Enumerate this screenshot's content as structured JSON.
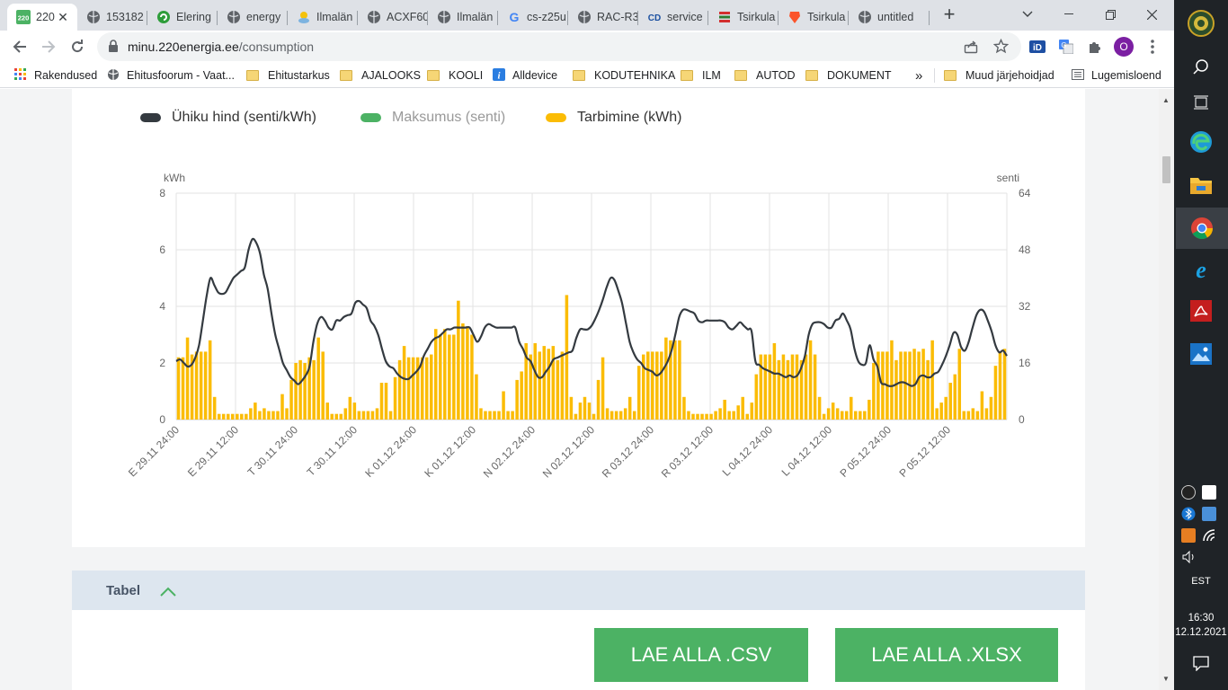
{
  "browser": {
    "tabs": [
      {
        "label": "220",
        "icon": "220-logo-icon",
        "active": true
      },
      {
        "label": "153182",
        "icon": "globe-icon"
      },
      {
        "label": "Elering",
        "icon": "elering-icon"
      },
      {
        "label": "energy",
        "icon": "globe-icon"
      },
      {
        "label": "Ilmalän",
        "icon": "weather-icon"
      },
      {
        "label": "ACXF60",
        "icon": "globe-icon"
      },
      {
        "label": "Ilmalän",
        "icon": "globe-icon"
      },
      {
        "label": "cs-z25u",
        "icon": "google-icon"
      },
      {
        "label": "RAC-R3",
        "icon": "globe-icon"
      },
      {
        "label": "service",
        "icon": "cd-icon"
      },
      {
        "label": "Tsirkula",
        "icon": "stack-icon"
      },
      {
        "label": "Tsirkula",
        "icon": "brave-icon"
      },
      {
        "label": "untitled",
        "icon": "globe-icon"
      }
    ],
    "url_host": "minu.220energia.ee",
    "url_path": "/consumption",
    "profile_initial": "O",
    "bookmarks": [
      {
        "label": "Rakendused",
        "icon": "apps-grid-icon"
      },
      {
        "label": "Ehitusfoorum - Vaat...",
        "icon": "globe-icon"
      },
      {
        "label": "Ehitustarkus",
        "icon": "folder-icon"
      },
      {
        "label": "AJALOOKS",
        "icon": "folder-icon"
      },
      {
        "label": "KOOLI",
        "icon": "folder-icon"
      },
      {
        "label": "Alldevice",
        "icon": "info-icon"
      },
      {
        "label": "KODUTEHNIKA",
        "icon": "folder-icon"
      },
      {
        "label": "ILM",
        "icon": "folder-icon"
      },
      {
        "label": "AUTOD",
        "icon": "folder-icon"
      },
      {
        "label": "DOKUMENT",
        "icon": "folder-icon"
      }
    ],
    "more_bookmarks": "»",
    "other_bookmarks": "Muud järjehoidjad",
    "reading_list": "Lugemisloend"
  },
  "legend": [
    {
      "label": "Ühiku hind (senti/kWh)",
      "color": "#343a40",
      "enabled": true
    },
    {
      "label": "Maksumus (senti)",
      "color": "#4cb264",
      "enabled": false
    },
    {
      "label": "Tarbimine (kWh)",
      "color": "#fbbc05",
      "enabled": true
    }
  ],
  "chart_data": {
    "type": "bar",
    "y_left_label": "kWh",
    "y_right_label": "senti",
    "y_left_ticks": [
      "0",
      "2",
      "4",
      "6",
      "8"
    ],
    "y_right_ticks": [
      "0",
      "16",
      "32",
      "48",
      "64"
    ],
    "ylim_left": [
      0,
      8
    ],
    "ylim_right": [
      0,
      64
    ],
    "x_tick_labels": [
      "E 29.11 24:00",
      "E 29.11 12:00",
      "T 30.11 24:00",
      "T 30.11 12:00",
      "K 01.12 24:00",
      "K 01.12 12:00",
      "N 02.12 24:00",
      "N 02.12 12:00",
      "R 03.12 24:00",
      "R 03.12 12:00",
      "L 04.12 24:00",
      "L 04.12 12:00",
      "P 05.12 24:00",
      "P 05.12 12:00"
    ],
    "grid": true,
    "series": [
      {
        "name": "Tarbimine (kWh)",
        "axis": "left",
        "type": "bar",
        "color": "#fbbc05",
        "values": [
          2.2,
          2.2,
          2.9,
          2.3,
          2.4,
          2.4,
          2.4,
          2.8,
          0.8,
          0.2,
          0.2,
          0.2,
          0.2,
          0.2,
          0.2,
          0.2,
          0.4,
          0.6,
          0.3,
          0.4,
          0.3,
          0.3,
          0.3,
          0.9,
          0.4,
          1.4,
          2.0,
          2.1,
          2.0,
          2.2,
          2.1,
          2.9,
          2.4,
          0.6,
          0.2,
          0.2,
          0.2,
          0.4,
          0.8,
          0.6,
          0.3,
          0.3,
          0.3,
          0.3,
          0.4,
          1.3,
          1.3,
          0.3,
          1.5,
          2.1,
          2.6,
          2.2,
          2.2,
          2.2,
          2.2,
          2.2,
          2.3,
          3.2,
          3.0,
          3.2,
          3.0,
          3.0,
          4.2,
          3.4,
          3.3,
          3.0,
          1.6,
          0.4,
          0.3,
          0.3,
          0.3,
          0.3,
          1.0,
          0.3,
          0.3,
          1.4,
          1.7,
          2.7,
          2.3,
          2.7,
          2.4,
          2.6,
          2.5,
          2.6,
          2.1,
          2.4,
          4.4,
          0.8,
          0.2,
          0.6,
          0.8,
          0.6,
          0.2,
          1.4,
          2.2,
          0.4,
          0.3,
          0.3,
          0.3,
          0.4,
          0.8,
          0.3,
          1.9,
          2.3,
          2.4,
          2.4,
          2.4,
          2.4,
          2.9,
          2.8,
          2.8,
          2.8,
          0.8,
          0.3,
          0.2,
          0.2,
          0.2,
          0.2,
          0.2,
          0.3,
          0.4,
          0.7,
          0.3,
          0.3,
          0.5,
          0.8,
          0.2,
          0.6,
          1.6,
          2.3,
          2.3,
          2.3,
          2.7,
          2.1,
          2.3,
          2.1,
          2.3,
          2.3,
          2.1,
          2.3,
          2.8,
          2.3,
          0.8,
          0.2,
          0.4,
          0.6,
          0.4,
          0.3,
          0.3,
          0.8,
          0.3,
          0.3,
          0.3,
          0.7,
          2.0,
          2.4,
          2.4,
          2.4,
          2.8,
          2.1,
          2.4,
          2.4,
          2.4,
          2.5,
          2.4,
          2.5,
          2.1,
          2.8,
          0.4,
          0.6,
          0.8,
          1.3,
          1.6,
          2.5,
          0.3,
          0.3,
          0.4,
          0.3,
          1.0,
          0.4,
          0.8,
          1.9,
          2.4,
          2.5
        ]
      },
      {
        "name": "Ühiku hind (senti/kWh)",
        "axis": "right",
        "type": "line",
        "color": "#343a40",
        "values": [
          16.5,
          17.0,
          16.0,
          15.0,
          15.5,
          17.5,
          21.0,
          28.0,
          35.0,
          40.0,
          38.0,
          36.0,
          35.5,
          36.0,
          38.0,
          40.0,
          41.0,
          42.0,
          43.0,
          48.0,
          51.0,
          50.0,
          47.0,
          41.0,
          37.0,
          30.0,
          24.0,
          20.0,
          16.0,
          14.0,
          12.0,
          11.0,
          10.0,
          11.0,
          12.5,
          15.0,
          22.0,
          27.0,
          29.0,
          28.0,
          26.0,
          25.5,
          28.0,
          28.0,
          29.0,
          29.5,
          30.0,
          33.0,
          33.5,
          32.5,
          31.5,
          28.0,
          26.5,
          24.0,
          20.0,
          16.5,
          15.0,
          14.5,
          13.0,
          12.0,
          11.5,
          11.5,
          12.5,
          13.5,
          15.0,
          18.0,
          20.0,
          22.0,
          23.0,
          23.5,
          24.5,
          25.5,
          25.5,
          26.0,
          26.0,
          26.0,
          26.0,
          26.0,
          24.0,
          22.0,
          23.5,
          26.0,
          27.0,
          26.5,
          26.0,
          26.0,
          26.0,
          26.0,
          26.0,
          26.0,
          22.0,
          20.0,
          17.5,
          16.5,
          14.0,
          12.0,
          12.0,
          13.5,
          15.0,
          17.0,
          17.5,
          18.0,
          18.5,
          19.0,
          19.5,
          23.0,
          25.5,
          25.5,
          25.5,
          26.5,
          28.5,
          31.0,
          34.0,
          37.5,
          40.0,
          39.5,
          36.5,
          33.0,
          27.5,
          22.0,
          19.0,
          17.0,
          16.0,
          14.5,
          14.0,
          13.5,
          12.5,
          13.0,
          14.5,
          16.5,
          19.5,
          24.0,
          29.0,
          31.0,
          31.0,
          30.5,
          30.0,
          28.0,
          27.5,
          28.0,
          28.0,
          28.0,
          28.0,
          28.0,
          27.5,
          26.0,
          25.5,
          26.5,
          27.5,
          26.5,
          25.5,
          25.0,
          16.5,
          15.5,
          14.5,
          14.0,
          13.5,
          13.0,
          13.0,
          12.5,
          12.0,
          12.5,
          12.0,
          12.5,
          14.5,
          18.0,
          24.0,
          27.0,
          27.5,
          27.5,
          27.0,
          26.0,
          26.0,
          28.0,
          28.5,
          30.0,
          28.0,
          25.5,
          20.0,
          16.5,
          15.5,
          16.0,
          21.0,
          17.0,
          15.0,
          10.5,
          10.0,
          9.5,
          9.5,
          10.0,
          10.5,
          10.5,
          10.0,
          9.5,
          10.0,
          12.0,
          12.5,
          12.0,
          12.0,
          13.0,
          13.5,
          15.5,
          18.0,
          21.0,
          24.5,
          24.0,
          20.5,
          19.5,
          22.0,
          26.0,
          29.5,
          31.0,
          30.5,
          28.0,
          25.0,
          21.0,
          19.0,
          19.5,
          18.0
        ]
      }
    ]
  },
  "table_section": {
    "title": "Tabel"
  },
  "downloads": {
    "csv": "LAE ALLA .CSV",
    "xlsx": "LAE ALLA .XLSX"
  },
  "taskbar": {
    "apps": [
      "cortana-icon",
      "search-icon",
      "task-view-icon",
      "edge-icon",
      "file-explorer-icon",
      "chrome-icon",
      "internet-explorer-icon",
      "acrobat-icon",
      "photos-icon"
    ],
    "language": "EST",
    "time": "16:30",
    "date": "12.12.2021"
  }
}
